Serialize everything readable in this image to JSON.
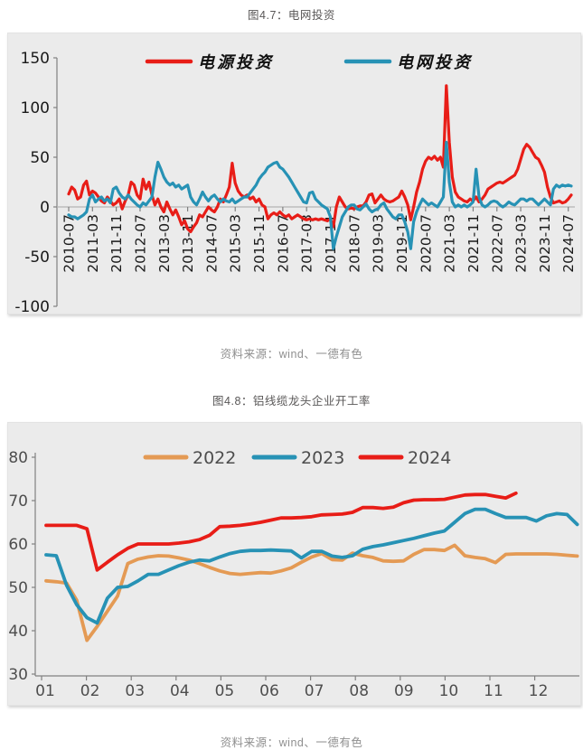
{
  "figure1": {
    "title": "图4.7：电网投资",
    "source": "资料来源：wind、一德有色"
  },
  "figure2": {
    "title": "图4.8：铝线缆龙头企业开工率",
    "source": "资料来源：wind、一德有色"
  },
  "colors": {
    "red": "#e81d17",
    "teal": "#2792b5",
    "orange": "#e49a54",
    "panel_bg": "#ebebeb",
    "axis": "#808080",
    "zero_line": "#b3b3b3",
    "tick_label_dark": "#1a1a1a",
    "tick_label_gray": "#4d4d4d",
    "title_gray": "#595757",
    "caption_gray": "#8f8f8f"
  },
  "chart_data": [
    {
      "type": "line",
      "title": "图4.7：电网投资",
      "xlabel": "",
      "ylabel": "",
      "ylim": [
        -100,
        150
      ],
      "y_ticks": [
        150,
        100,
        50,
        0,
        -50,
        -100
      ],
      "grid": "zero-line-only",
      "legend_position": "top-center",
      "x_unit": "month",
      "x_start": "2010-07",
      "x_end": "2024-08",
      "x_tick_labels": [
        "2010-07",
        "2011-03",
        "2011-11",
        "2012-07",
        "2013-03",
        "2013-11",
        "2014-07",
        "2015-03",
        "2015-11",
        "2016-07",
        "2017-03",
        "2017-11",
        "2018-07",
        "2019-03",
        "2019-11",
        "2020-07",
        "2021-03",
        "2021-11",
        "2022-07",
        "2023-03",
        "2023-11",
        "2024-07"
      ],
      "x_tick_every_n_months": 8,
      "series": [
        {
          "name": "电源投资",
          "color": "#e81d17",
          "values": [
            13,
            20,
            17,
            8,
            10,
            22,
            26,
            12,
            16,
            14,
            10,
            6,
            4,
            10,
            6,
            2,
            4,
            8,
            -2,
            6,
            12,
            25,
            22,
            12,
            8,
            28,
            18,
            25,
            12,
            2,
            8,
            0,
            -5,
            5,
            -2,
            -8,
            -3,
            -10,
            -18,
            -14,
            -22,
            -25,
            -20,
            -16,
            -8,
            -10,
            -5,
            0,
            -3,
            -5,
            0,
            8,
            5,
            12,
            20,
            44,
            24,
            16,
            12,
            10,
            12,
            8,
            10,
            5,
            8,
            2,
            0,
            -12,
            -8,
            -6,
            -8,
            -5,
            -8,
            -10,
            -8,
            -12,
            -10,
            -8,
            -10,
            -12,
            -13,
            -12,
            -13,
            -12,
            -13,
            -12,
            -13,
            -14,
            -12,
            -20,
            0,
            10,
            5,
            0,
            -2,
            -1,
            -2,
            0,
            1,
            1,
            5,
            12,
            13,
            4,
            8,
            12,
            8,
            6,
            5,
            6,
            8,
            10,
            16,
            10,
            2,
            -13,
            0,
            15,
            25,
            38,
            46,
            50,
            48,
            51,
            47,
            50,
            40,
            122,
            65,
            30,
            15,
            10,
            8,
            6,
            5,
            8,
            6,
            10,
            5,
            8,
            12,
            18,
            20,
            22,
            24,
            25,
            24,
            26,
            28,
            30,
            32,
            38,
            48,
            58,
            63,
            60,
            55,
            50,
            48,
            42,
            35,
            20,
            10,
            4,
            5,
            6,
            4,
            5,
            8,
            12
          ]
        },
        {
          "name": "电网投资",
          "color": "#2792b5",
          "values": [
            -8,
            -10,
            -10,
            -12,
            -10,
            -8,
            -5,
            8,
            12,
            5,
            8,
            10,
            6,
            8,
            4,
            18,
            20,
            14,
            10,
            8,
            12,
            8,
            5,
            2,
            0,
            4,
            2,
            6,
            10,
            30,
            45,
            38,
            30,
            25,
            22,
            24,
            20,
            22,
            18,
            20,
            22,
            10,
            5,
            2,
            8,
            15,
            10,
            6,
            10,
            12,
            8,
            5,
            8,
            6,
            5,
            8,
            4,
            6,
            8,
            10,
            10,
            14,
            18,
            22,
            28,
            32,
            35,
            40,
            42,
            44,
            45,
            40,
            38,
            34,
            30,
            25,
            20,
            15,
            10,
            5,
            4,
            14,
            15,
            8,
            5,
            2,
            0,
            -2,
            -10,
            -42,
            -30,
            -20,
            -10,
            -5,
            0,
            2,
            2,
            -2,
            -3,
            0,
            3,
            -2,
            -5,
            -3,
            -2,
            2,
            4,
            -2,
            -6,
            -10,
            -12,
            -8,
            -8,
            -15,
            -25,
            -42,
            -15,
            -5,
            2,
            8,
            5,
            2,
            4,
            2,
            0,
            5,
            10,
            65,
            25,
            5,
            0,
            2,
            0,
            2,
            0,
            2,
            5,
            38,
            10,
            2,
            0,
            2,
            5,
            6,
            5,
            2,
            0,
            2,
            5,
            3,
            2,
            5,
            8,
            8,
            6,
            8,
            8,
            5,
            2,
            5,
            8,
            5,
            2,
            18,
            22,
            20,
            22,
            21,
            22,
            21
          ]
        }
      ]
    },
    {
      "type": "line",
      "title": "图4.8：铝线缆龙头企业开工率",
      "xlabel": "",
      "ylabel": "",
      "ylim": [
        30,
        80
      ],
      "y_ticks": [
        80,
        70,
        60,
        50,
        40,
        30
      ],
      "grid": "off",
      "legend_position": "top-center",
      "x_unit": "week-of-year",
      "x_tick_labels": [
        "01",
        "02",
        "03",
        "04",
        "05",
        "06",
        "07",
        "08",
        "09",
        "10",
        "11",
        "12"
      ],
      "series": [
        {
          "name": "2022",
          "color": "#e49a54",
          "values": [
            51.5,
            51.3,
            51.0,
            47.0,
            37.8,
            41.0,
            44.5,
            48.0,
            55.5,
            56.5,
            57.0,
            57.3,
            57.2,
            56.8,
            56.3,
            55.5,
            54.6,
            53.8,
            53.2,
            53.0,
            53.2,
            53.4,
            53.3,
            53.8,
            54.5,
            55.8,
            57.0,
            57.8,
            56.4,
            56.3,
            57.9,
            57.3,
            56.9,
            56.1,
            56.0,
            56.1,
            57.6,
            58.7,
            58.7,
            58.5,
            59.7,
            57.3,
            56.9,
            56.6,
            55.7,
            57.6,
            57.7,
            57.7,
            57.7,
            57.7,
            57.6,
            57.4,
            57.2
          ]
        },
        {
          "name": "2023",
          "color": "#2792b5",
          "values": [
            57.5,
            57.3,
            50.5,
            46.0,
            43.0,
            41.8,
            47.5,
            50.0,
            50.2,
            51.5,
            53.0,
            53.0,
            54.0,
            55.0,
            55.8,
            56.3,
            56.1,
            57.0,
            57.8,
            58.3,
            58.5,
            58.5,
            58.6,
            58.5,
            58.4,
            56.8,
            58.3,
            58.3,
            57.2,
            56.9,
            57.3,
            58.8,
            59.4,
            59.8,
            60.3,
            60.8,
            61.3,
            61.9,
            62.5,
            63.0,
            65.0,
            67.0,
            68.0,
            68.0,
            67.0,
            66.1,
            66.1,
            66.1,
            65.3,
            66.5,
            67.0,
            66.8,
            64.5
          ]
        },
        {
          "name": "2024",
          "color": "#e81d17",
          "values": [
            64.3,
            64.3,
            64.3,
            64.3,
            63.5,
            54.0,
            55.8,
            57.5,
            59.0,
            60.0,
            60.0,
            60.0,
            60.0,
            60.2,
            60.5,
            61.0,
            62.0,
            64.0,
            64.1,
            64.3,
            64.6,
            65.0,
            65.5,
            66.0,
            66.0,
            66.1,
            66.3,
            66.7,
            66.8,
            66.9,
            67.3,
            68.4,
            68.4,
            68.2,
            68.5,
            69.5,
            70.1,
            70.2,
            70.2,
            70.3,
            70.8,
            71.3,
            71.4,
            71.4,
            71.0,
            70.6,
            71.7
          ]
        }
      ]
    }
  ]
}
